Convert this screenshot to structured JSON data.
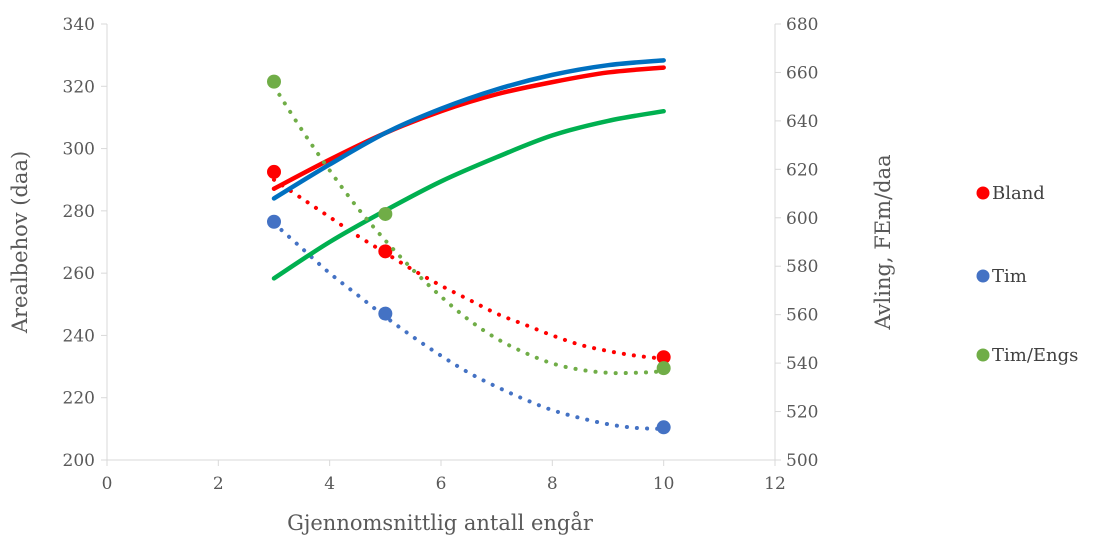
{
  "chart_data": {
    "type": "scatter",
    "xlabel": "Gjennomsnittlig antall engår",
    "ylabel": "Arealbehov (daa)",
    "y2label": "Avling, FEm/daa",
    "xlim": [
      0,
      12
    ],
    "ylim": [
      200,
      340
    ],
    "y2lim": [
      500,
      680
    ],
    "xticks": [
      "0",
      "2",
      "4",
      "6",
      "8",
      "10",
      "12"
    ],
    "yticks": [
      "200",
      "220",
      "240",
      "260",
      "280",
      "300",
      "320",
      "340"
    ],
    "y2ticks": [
      "500",
      "520",
      "540",
      "560",
      "580",
      "600",
      "620",
      "640",
      "660",
      "680"
    ],
    "grid": false,
    "legend_position": "right",
    "series": [
      {
        "name": "Bland",
        "color": "#ff0000",
        "axis": "left",
        "x": [
          3,
          5,
          10
        ],
        "y": [
          292.5,
          267,
          233
        ],
        "dotted_trend": {
          "x": [
            3,
            3.5,
            4,
            4.5,
            5,
            5.5,
            6,
            6.5,
            7,
            7.5,
            8,
            8.5,
            9,
            9.5,
            10
          ],
          "y": [
            290,
            284,
            278,
            272,
            266.5,
            261,
            256,
            251.5,
            247,
            243.5,
            240,
            237,
            235,
            233.5,
            232.5
          ]
        },
        "yield_curve": {
          "axis": "right",
          "x": [
            3,
            4,
            5,
            6,
            7,
            8,
            9,
            10
          ],
          "y": [
            612,
            624,
            635,
            644,
            651,
            656,
            660,
            662
          ]
        }
      },
      {
        "name": "Tim",
        "color": "#4472c4",
        "axis": "left",
        "x": [
          3,
          5,
          10
        ],
        "y": [
          276.5,
          247,
          210.5
        ],
        "dotted_trend": {
          "x": [
            3,
            3.5,
            4,
            4.5,
            5,
            5.5,
            6,
            6.5,
            7,
            7.5,
            8,
            8.5,
            9,
            9.5,
            10
          ],
          "y": [
            276,
            268,
            260,
            253,
            246,
            239.5,
            233.5,
            228,
            223.5,
            219.5,
            216,
            213.5,
            211.5,
            210.3,
            210
          ]
        },
        "yield_curve": {
          "axis": "right",
          "color": "#0070c0",
          "x": [
            3,
            4,
            5,
            6,
            7,
            8,
            9,
            10
          ],
          "y": [
            608,
            622,
            635,
            645,
            653,
            659,
            663,
            665
          ]
        }
      },
      {
        "name": "Tim/Engs",
        "color": "#70ad47",
        "axis": "left",
        "x": [
          3,
          5,
          10
        ],
        "y": [
          321.5,
          279,
          229.5
        ],
        "dotted_trend": {
          "x": [
            3,
            3.5,
            4,
            4.5,
            5,
            5.5,
            6,
            6.5,
            7,
            7.5,
            8,
            8.5,
            9,
            9.5,
            10
          ],
          "y": [
            320,
            306,
            293,
            281,
            270.5,
            261,
            252.5,
            245,
            239,
            234.5,
            231,
            229,
            228,
            228,
            228.5
          ]
        },
        "yield_curve": {
          "axis": "right",
          "color": "#00b050",
          "x": [
            3,
            4,
            5,
            6,
            7,
            8,
            9,
            10
          ],
          "y": [
            575,
            590,
            603,
            615,
            625,
            634,
            640,
            644
          ]
        }
      }
    ]
  }
}
